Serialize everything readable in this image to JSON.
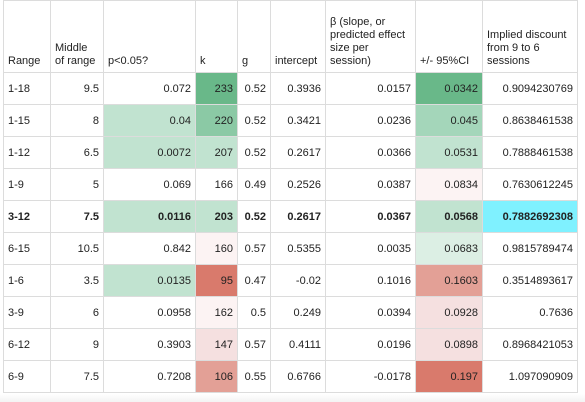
{
  "colors": {
    "g1": "#dcefe4",
    "g2": "#c1e3d0",
    "g3": "#a4d6ba",
    "g4": "#8bc9a5",
    "g5": "#69b889",
    "r1": "#fcf3f3",
    "r2": "#f5e0e0",
    "r3": "#efc3c2",
    "r4": "#e3a096",
    "r5": "#d97a6c",
    "cyan": "#7ff1ff"
  },
  "headers": [
    "Range",
    "Middle of range",
    "p<0.05?",
    "k",
    "g",
    "intercept",
    "β (slope, or predicted effect size per session)",
    "+/- 95%CI",
    "Implied discount from 9 to 6 sessions"
  ],
  "rows": [
    {
      "cells": [
        "1-18",
        "9.5",
        "0.072",
        "233",
        "0.52",
        "0.3936",
        "0.0157",
        "0.0342",
        "0.9094230769"
      ],
      "bold": false,
      "bg": [
        "",
        "",
        "",
        "g5",
        "",
        "",
        "",
        "g5",
        ""
      ]
    },
    {
      "cells": [
        "1-15",
        "8",
        "0.04",
        "220",
        "0.52",
        "0.3421",
        "0.0236",
        "0.045",
        "0.8638461538"
      ],
      "bold": false,
      "bg": [
        "",
        "",
        "g2",
        "g4",
        "",
        "",
        "",
        "g3",
        ""
      ]
    },
    {
      "cells": [
        "1-12",
        "6.5",
        "0.0072",
        "207",
        "0.52",
        "0.2617",
        "0.0366",
        "0.0531",
        "0.7888461538"
      ],
      "bold": false,
      "bg": [
        "",
        "",
        "g2",
        "g2",
        "",
        "",
        "",
        "g2",
        ""
      ]
    },
    {
      "cells": [
        "1-9",
        "5",
        "0.069",
        "166",
        "0.49",
        "0.2526",
        "0.0387",
        "0.0834",
        "0.7630612245"
      ],
      "bold": false,
      "bg": [
        "",
        "",
        "",
        "",
        "",
        "",
        "",
        "r1",
        ""
      ]
    },
    {
      "cells": [
        "3-12",
        "7.5",
        "0.0116",
        "203",
        "0.52",
        "0.2617",
        "0.0367",
        "0.0568",
        "0.7882692308"
      ],
      "bold": true,
      "bg": [
        "",
        "",
        "g2",
        "g2",
        "",
        "",
        "",
        "g2",
        "cyan"
      ]
    },
    {
      "cells": [
        "6-15",
        "10.5",
        "0.842",
        "160",
        "0.57",
        "0.5355",
        "0.0035",
        "0.0683",
        "0.9815789474"
      ],
      "bold": false,
      "bg": [
        "",
        "",
        "",
        "r1",
        "",
        "",
        "",
        "g1",
        ""
      ]
    },
    {
      "cells": [
        "1-6",
        "3.5",
        "0.0135",
        "95",
        "0.47",
        "-0.02",
        "0.1016",
        "0.1603",
        "0.3514893617"
      ],
      "bold": false,
      "bg": [
        "",
        "",
        "g2",
        "r5",
        "",
        "",
        "",
        "r4",
        ""
      ]
    },
    {
      "cells": [
        "3-9",
        "6",
        "0.0958",
        "162",
        "0.5",
        "0.249",
        "0.0394",
        "0.0928",
        "0.7636"
      ],
      "bold": false,
      "bg": [
        "",
        "",
        "",
        "r1",
        "",
        "",
        "",
        "r2",
        ""
      ]
    },
    {
      "cells": [
        "6-12",
        "9",
        "0.3903",
        "147",
        "0.57",
        "0.4111",
        "0.0196",
        "0.0898",
        "0.8968421053"
      ],
      "bold": false,
      "bg": [
        "",
        "",
        "",
        "r2",
        "",
        "",
        "",
        "r2",
        ""
      ]
    },
    {
      "cells": [
        "6-9",
        "7.5",
        "0.7208",
        "106",
        "0.55",
        "0.6766",
        "-0.0178",
        "0.197",
        "1.097090909"
      ],
      "bold": false,
      "bg": [
        "",
        "",
        "",
        "r4",
        "",
        "",
        "",
        "r5",
        ""
      ]
    }
  ]
}
